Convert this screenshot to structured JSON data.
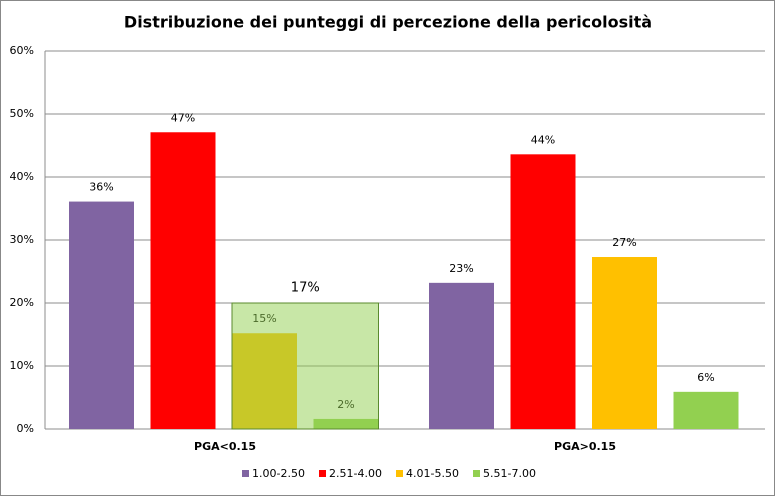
{
  "chart_data": {
    "type": "bar",
    "title": "Distribuzione dei punteggi di percezione della pericolosità",
    "categories": [
      "PGA<0.15",
      "PGA>0.15"
    ],
    "series": [
      {
        "name": "1.00-2.50",
        "color": "#8064a2",
        "values": [
          36.1,
          23.2
        ],
        "value_labels": [
          "36%",
          "23%"
        ]
      },
      {
        "name": "2.51-4.00",
        "color": "#ff0000",
        "values": [
          47.1,
          43.6
        ],
        "value_labels": [
          "47%",
          "44%"
        ]
      },
      {
        "name": "4.01-5.50",
        "color": "#ffc000",
        "values": [
          15.2,
          27.3
        ],
        "value_labels": [
          "15%",
          "27%"
        ]
      },
      {
        "name": "5.51-7.00",
        "color": "#92d050",
        "values": [
          1.6,
          5.9
        ],
        "value_labels": [
          "2%",
          "6%"
        ]
      }
    ],
    "annotation": {
      "text": "17%",
      "category": 0,
      "series": [
        2,
        3
      ]
    },
    "ylim": [
      0,
      60
    ],
    "yticks": [
      {
        "value": 0,
        "label": "0%"
      },
      {
        "value": 10,
        "label": "10%"
      },
      {
        "value": 20,
        "label": "20%"
      },
      {
        "value": 30,
        "label": "30%"
      },
      {
        "value": 40,
        "label": "40%"
      },
      {
        "value": 50,
        "label": "50%"
      },
      {
        "value": 60,
        "label": "60%"
      }
    ],
    "grid": true,
    "legend": "bottom"
  }
}
